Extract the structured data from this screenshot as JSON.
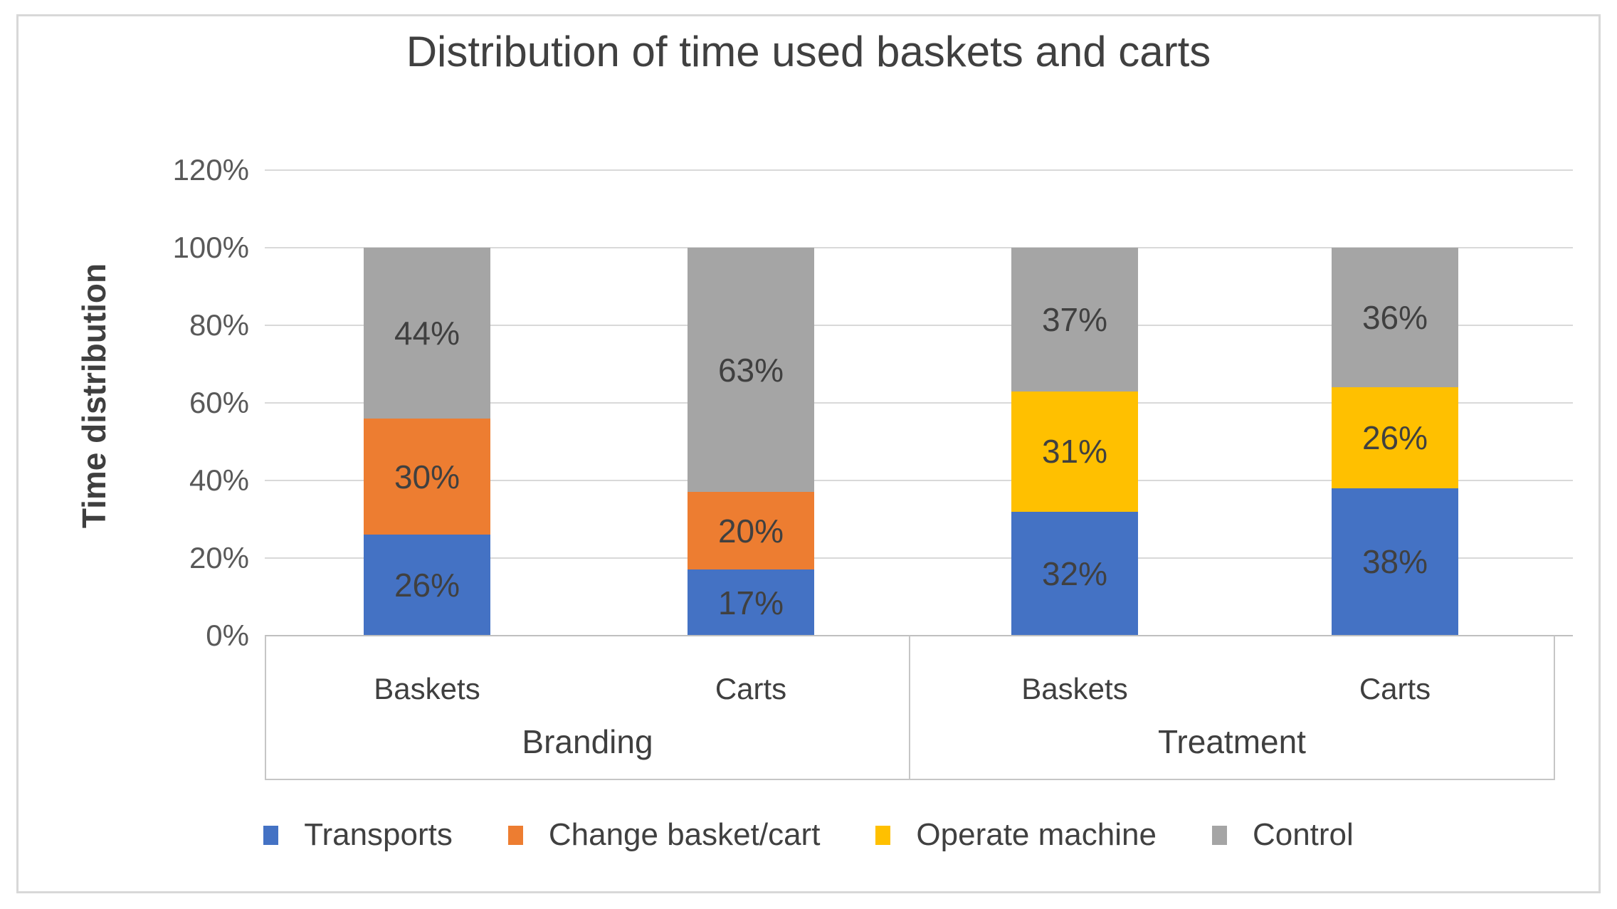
{
  "chart_data": {
    "type": "bar",
    "stacked": true,
    "title": "Distribution of time used baskets and carts",
    "ylabel": "Time distribution",
    "xlabel": "",
    "ylim_pct": [
      0,
      120
    ],
    "y_ticks": [
      "0%",
      "20%",
      "40%",
      "60%",
      "80%",
      "100%",
      "120%"
    ],
    "y_tick_values": [
      0,
      20,
      40,
      60,
      80,
      100,
      120
    ],
    "grid": true,
    "legend_position": "bottom",
    "groups": [
      {
        "label": "Branding",
        "categories": [
          "Baskets",
          "Carts"
        ]
      },
      {
        "label": "Treatment",
        "categories": [
          "Baskets",
          "Carts"
        ]
      }
    ],
    "categories": [
      "Baskets",
      "Carts",
      "Baskets",
      "Carts"
    ],
    "series": [
      {
        "name": "Transports",
        "color": "#4472C4",
        "values": [
          26,
          17,
          32,
          38
        ]
      },
      {
        "name": "Change basket/cart",
        "color": "#ED7D31",
        "values": [
          30,
          20,
          0,
          0
        ]
      },
      {
        "name": "Operate machine",
        "color": "#FFC000",
        "values": [
          0,
          0,
          31,
          26
        ]
      },
      {
        "name": "Control",
        "color": "#A5A5A5",
        "values": [
          44,
          63,
          37,
          36
        ]
      }
    ],
    "data_label_suffix": "%"
  },
  "colors": {
    "grid": "#D9D9D9",
    "axis": "#BFBFBF",
    "title_text": "#404040",
    "tick_text": "#595959",
    "label_text": "#404040"
  }
}
